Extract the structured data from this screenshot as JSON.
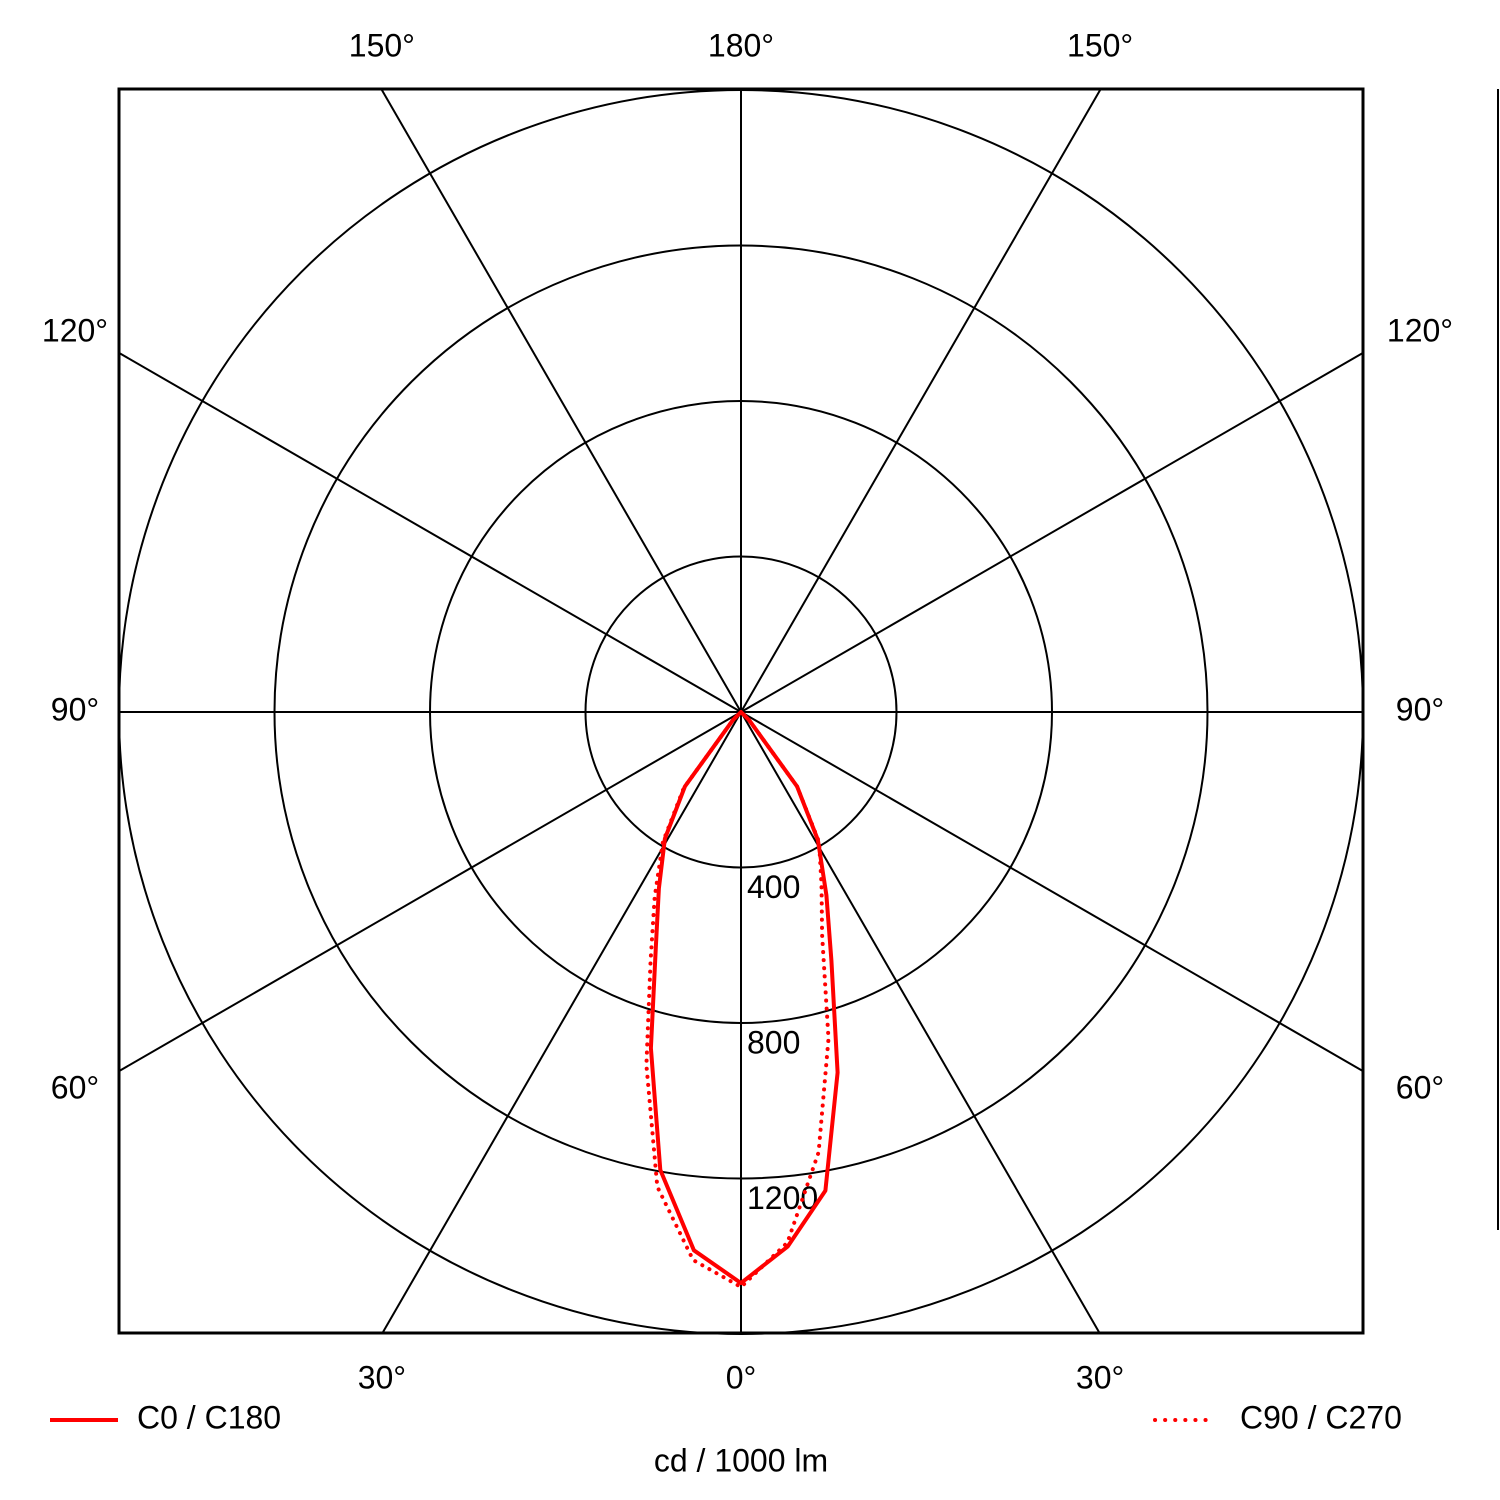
{
  "chart_data": {
    "type": "polar",
    "axis_label": "cd / 1000 lm",
    "theta": [
      -90,
      -60,
      -45,
      -37,
      -31,
      -25,
      -20,
      -15,
      -10,
      -5,
      0,
      5,
      10,
      15,
      20,
      25,
      31,
      37,
      45,
      60,
      90
    ],
    "series": [
      {
        "name": "C0 / C180",
        "color": "#ff0000",
        "style": "solid",
        "values": [
          0,
          0,
          30,
          240,
          380,
          500,
          640,
          895,
          1196,
          1390,
          1469,
          1380,
          1250,
          960,
          680,
          520,
          384,
          240,
          30,
          0,
          0
        ]
      },
      {
        "name": "C90 / C270",
        "color": "#ff0000",
        "style": "dotted",
        "values": [
          0,
          0,
          30,
          245,
          390,
          525,
          680,
          940,
          1240,
          1415,
          1479,
          1370,
          1150,
          870,
          610,
          490,
          390,
          240,
          30,
          0,
          0
        ]
      }
    ],
    "rlim": [
      0,
      1600
    ],
    "rticks": [
      400,
      800,
      1200
    ],
    "theta_ticks": [
      {
        "value": -150,
        "label": "150°"
      },
      {
        "value": 180,
        "label": "180°"
      },
      {
        "value": 150,
        "label": "150°"
      },
      {
        "value": -120,
        "label": "120°"
      },
      {
        "value": -90,
        "label": "90°"
      },
      {
        "value": -60,
        "label": "60°"
      },
      {
        "value": 120,
        "label": "120°"
      },
      {
        "value": 90,
        "label": "90°"
      },
      {
        "value": 60,
        "label": "60°"
      },
      {
        "value": -30,
        "label": "30°"
      },
      {
        "value": 0,
        "label": "0°"
      },
      {
        "value": 30,
        "label": "30°"
      }
    ]
  }
}
